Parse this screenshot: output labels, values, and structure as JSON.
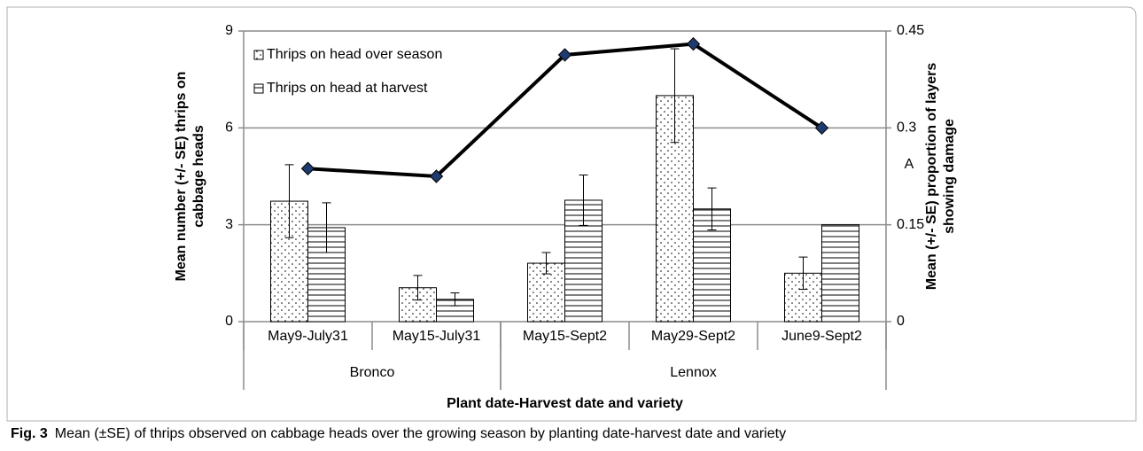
{
  "chart_data": {
    "type": "bar",
    "categories": [
      "May9-July31",
      "May15-July31",
      "May15-Sept2",
      "May29-Sept2",
      "June9-Sept2"
    ],
    "category_groups": [
      "Bronco",
      "Bronco",
      "Lennox",
      "Lennox",
      "Lennox"
    ],
    "xlabel": "Plant date-Harvest date and variety",
    "ylabel": [
      "Mean number (+/- SE) thrips on",
      "cabbage heads"
    ],
    "y2label": [
      "Mean (+/- SE) proportion of layers",
      "showing damage"
    ],
    "annotation": "A",
    "ylim": [
      0,
      9
    ],
    "yticks": [
      0,
      3,
      6,
      9
    ],
    "y2lim": [
      0,
      0.45
    ],
    "y2ticks": [
      0,
      0.15,
      0.3,
      0.45
    ],
    "grid": true,
    "legend": "top-left",
    "series": [
      {
        "name": "Thrips on head over season",
        "color": "#000000",
        "pattern": "dots",
        "values": [
          3.73,
          1.05,
          1.81,
          7.0,
          1.5
        ],
        "errors": [
          1.13,
          0.38,
          0.33,
          1.45,
          0.5
        ]
      },
      {
        "name": "Thrips on head at harvest",
        "color": "#000000",
        "pattern": "hlines",
        "values": [
          2.91,
          0.69,
          3.76,
          3.49,
          3.0
        ],
        "errors": [
          0.77,
          0.2,
          0.78,
          0.65,
          null
        ]
      },
      {
        "type": "line",
        "axis": "y2",
        "color": "#000000",
        "marker_color": "#1f3a6e",
        "values": [
          0.237,
          0.225,
          0.413,
          0.43,
          0.3
        ]
      }
    ]
  },
  "caption": {
    "label": "Fig. 3",
    "text": "Mean (±SE) of thrips observed on cabbage heads over the growing season by planting date-harvest date and variety"
  }
}
